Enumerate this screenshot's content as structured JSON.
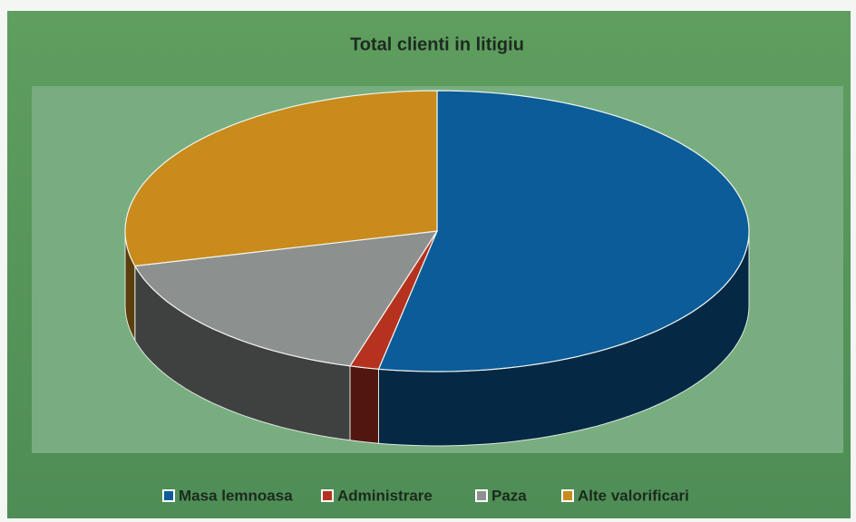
{
  "chart_data": {
    "type": "pie3d",
    "title": "Total clienti in litigiu",
    "categories": [
      "Masa lemnoasa",
      "Administrare",
      "Paza",
      "Alte valorificari"
    ],
    "values": [
      53,
      1.5,
      16.5,
      29
    ],
    "colors": [
      "#0b5c98",
      "#b5321f",
      "#8c918f",
      "#c98b1c"
    ],
    "legend": "bottom"
  }
}
